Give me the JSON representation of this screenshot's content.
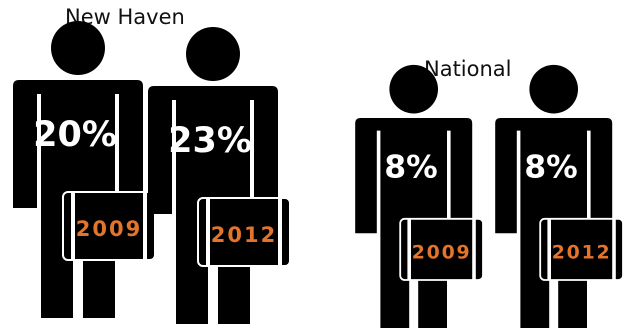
{
  "chart_data": {
    "type": "bar",
    "groups": [
      {
        "name": "New Haven",
        "figures": [
          {
            "year": "2009",
            "value": 20,
            "label": "20%"
          },
          {
            "year": "2012",
            "value": 23,
            "label": "23%"
          }
        ]
      },
      {
        "name": "National",
        "figures": [
          {
            "year": "2009",
            "value": 8,
            "label": "8%"
          },
          {
            "year": "2012",
            "value": 8,
            "label": "8%"
          }
        ]
      }
    ],
    "colors": {
      "figure": "#000000",
      "percent_text": "#ffffff",
      "year_text": "#e2742c"
    }
  }
}
